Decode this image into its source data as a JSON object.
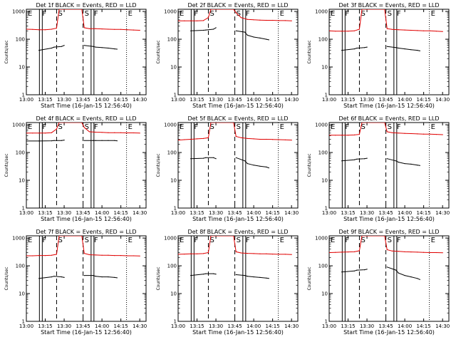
{
  "figure": {
    "type": "line-grid",
    "rows": 3,
    "cols": 3
  },
  "style": {
    "events_color": "#000000",
    "lld_color": "#e00000",
    "background": "#ffffff"
  },
  "common": {
    "xlabel": "Start Time (16-Jan-15 12:56:40)",
    "ylabel": "Counts/sec",
    "x_ticks": [
      "13:00",
      "13:15",
      "13:30",
      "13:45",
      "14:00",
      "14:15",
      "14:30"
    ],
    "x_tick_minutes": [
      0,
      15,
      30,
      45,
      60,
      75,
      90
    ],
    "xlim_minutes": [
      0,
      95
    ],
    "y_ticks": [
      "1",
      "10",
      "100",
      "1000"
    ],
    "y_tick_values": [
      1,
      10,
      100,
      1000
    ],
    "ylim": [
      1,
      1200
    ],
    "y_scale": "log",
    "grid": false,
    "markers": [
      {
        "label": "E",
        "minute": 0,
        "line": "dotted"
      },
      {
        "label": "F",
        "minute": 11.5,
        "line": "double-solid"
      },
      {
        "label": "S",
        "minute": 24,
        "line": "dashed"
      },
      {
        "label": "S",
        "minute": 45,
        "line": "dashed"
      },
      {
        "label": "F",
        "minute": 52.5,
        "line": "double-solid"
      },
      {
        "label": "E",
        "minute": 79.5,
        "line": "dotted"
      }
    ]
  },
  "chart_data": [
    {
      "type": "line",
      "title": "Det 1f BLACK = Events, RED = LLD",
      "series": [
        {
          "name": "Events",
          "x": [
            10,
            20,
            22,
            28,
            30,
            44,
            46,
            53,
            55,
            60,
            65,
            70,
            72
          ],
          "y": [
            40,
            48,
            52,
            55,
            60,
            null,
            60,
            55,
            52,
            50,
            48,
            45,
            44
          ]
        },
        {
          "name": "LLD",
          "x": [
            0,
            5,
            10,
            15,
            20,
            24,
            26,
            44,
            46,
            50,
            55,
            60,
            65,
            70,
            75,
            80,
            85,
            90
          ],
          "y": [
            230,
            225,
            220,
            220,
            230,
            250,
            1200,
            1200,
            260,
            240,
            240,
            235,
            230,
            225,
            225,
            220,
            215,
            210
          ]
        }
      ]
    },
    {
      "type": "line",
      "title": "Det 2f BLACK = Events, RED = LLD",
      "series": [
        {
          "name": "Events",
          "x": [
            10,
            20,
            22,
            28,
            30,
            44,
            46,
            53,
            55,
            60,
            65,
            70,
            72
          ],
          "y": [
            200,
            210,
            215,
            230,
            260,
            null,
            200,
            180,
            140,
            120,
            110,
            100,
            95
          ]
        },
        {
          "name": "LLD",
          "x": [
            0,
            5,
            10,
            15,
            20,
            24,
            26,
            44,
            46,
            50,
            55,
            60,
            65,
            70,
            75,
            80,
            85,
            90
          ],
          "y": [
            460,
            460,
            460,
            460,
            470,
            600,
            1200,
            1200,
            900,
            600,
            520,
            500,
            490,
            480,
            480,
            470,
            470,
            460
          ]
        }
      ]
    },
    {
      "type": "line",
      "title": "Det 3f BLACK = Events, RED = LLD",
      "series": [
        {
          "name": "Events",
          "x": [
            10,
            20,
            22,
            28,
            30,
            44,
            46,
            53,
            55,
            60,
            65,
            70,
            72
          ],
          "y": [
            40,
            45,
            48,
            50,
            52,
            null,
            55,
            50,
            48,
            45,
            42,
            40,
            38
          ]
        },
        {
          "name": "LLD",
          "x": [
            0,
            5,
            10,
            15,
            20,
            24,
            26,
            44,
            46,
            50,
            55,
            60,
            65,
            70,
            75,
            80,
            85,
            90
          ],
          "y": [
            200,
            195,
            195,
            195,
            200,
            230,
            1200,
            1200,
            240,
            225,
            220,
            215,
            210,
            205,
            200,
            200,
            195,
            190
          ]
        }
      ]
    },
    {
      "type": "line",
      "title": "Det 4f BLACK = Events, RED = LLD",
      "series": [
        {
          "name": "Events",
          "x": [
            0,
            10,
            20,
            22,
            28,
            30,
            44,
            46,
            53,
            55,
            60,
            65,
            70,
            72
          ],
          "y": [
            260,
            260,
            265,
            270,
            270,
            280,
            null,
            270,
            270,
            270,
            270,
            270,
            270,
            265
          ]
        },
        {
          "name": "LLD",
          "x": [
            0,
            5,
            10,
            15,
            20,
            24,
            26,
            44,
            46,
            50,
            55,
            60,
            65,
            70,
            75,
            80,
            85,
            90
          ],
          "y": [
            500,
            500,
            500,
            500,
            520,
            700,
            1200,
            1200,
            800,
            560,
            540,
            530,
            520,
            520,
            520,
            510,
            510,
            500
          ]
        }
      ]
    },
    {
      "type": "line",
      "title": "Det 5f BLACK = Events, RED = LLD",
      "series": [
        {
          "name": "Events",
          "x": [
            10,
            20,
            22,
            28,
            30,
            44,
            46,
            53,
            55,
            60,
            65,
            70,
            72
          ],
          "y": [
            60,
            62,
            65,
            65,
            60,
            null,
            65,
            50,
            40,
            35,
            32,
            30,
            28
          ]
        },
        {
          "name": "LLD",
          "x": [
            0,
            5,
            10,
            15,
            20,
            24,
            26,
            44,
            46,
            50,
            55,
            60,
            65,
            70,
            75,
            80,
            85,
            90
          ],
          "y": [
            280,
            290,
            300,
            310,
            320,
            340,
            1200,
            1200,
            380,
            340,
            320,
            310,
            300,
            300,
            295,
            290,
            285,
            280
          ]
        }
      ]
    },
    {
      "type": "line",
      "title": "Det 6f BLACK = Events, RED = LLD",
      "series": [
        {
          "name": "Events",
          "x": [
            10,
            20,
            22,
            28,
            30,
            44,
            46,
            53,
            55,
            60,
            65,
            70,
            72
          ],
          "y": [
            50,
            55,
            58,
            60,
            62,
            null,
            60,
            50,
            45,
            40,
            38,
            35,
            34
          ]
        },
        {
          "name": "LLD",
          "x": [
            0,
            5,
            10,
            15,
            20,
            24,
            26,
            44,
            46,
            50,
            55,
            60,
            65,
            70,
            75,
            80,
            85,
            90
          ],
          "y": [
            420,
            420,
            420,
            420,
            430,
            450,
            1200,
            1200,
            560,
            520,
            500,
            490,
            480,
            470,
            460,
            460,
            450,
            440
          ]
        }
      ]
    },
    {
      "type": "line",
      "title": "Det 7f BLACK = Events, RED = LLD",
      "series": [
        {
          "name": "Events",
          "x": [
            10,
            20,
            22,
            28,
            30,
            44,
            46,
            53,
            55,
            60,
            65,
            70,
            72
          ],
          "y": [
            35,
            40,
            42,
            40,
            38,
            null,
            45,
            45,
            42,
            40,
            40,
            38,
            37
          ]
        },
        {
          "name": "LLD",
          "x": [
            0,
            5,
            10,
            15,
            20,
            24,
            26,
            44,
            46,
            50,
            55,
            60,
            65,
            70,
            75,
            80,
            85,
            90
          ],
          "y": [
            230,
            230,
            235,
            235,
            240,
            260,
            1200,
            1200,
            280,
            250,
            245,
            240,
            240,
            235,
            235,
            230,
            230,
            225
          ]
        }
      ]
    },
    {
      "type": "line",
      "title": "Det 8f BLACK = Events, RED = LLD",
      "series": [
        {
          "name": "Events",
          "x": [
            10,
            20,
            22,
            28,
            30,
            44,
            46,
            53,
            55,
            60,
            65,
            70,
            72
          ],
          "y": [
            45,
            50,
            52,
            52,
            50,
            null,
            48,
            45,
            42,
            40,
            38,
            36,
            35
          ]
        },
        {
          "name": "LLD",
          "x": [
            0,
            5,
            10,
            15,
            20,
            24,
            26,
            44,
            46,
            50,
            55,
            60,
            65,
            70,
            75,
            80,
            85,
            90
          ],
          "y": [
            260,
            265,
            270,
            270,
            275,
            300,
            1200,
            1200,
            320,
            290,
            280,
            275,
            270,
            270,
            265,
            260,
            260,
            255
          ]
        }
      ]
    },
    {
      "type": "line",
      "title": "Det 9f BLACK = Events, RED = LLD",
      "series": [
        {
          "name": "Events",
          "x": [
            10,
            20,
            22,
            28,
            30,
            44,
            46,
            53,
            55,
            60,
            65,
            70,
            72
          ],
          "y": [
            60,
            65,
            70,
            72,
            75,
            null,
            90,
            70,
            55,
            45,
            40,
            35,
            32
          ]
        },
        {
          "name": "LLD",
          "x": [
            0,
            5,
            10,
            15,
            20,
            24,
            26,
            44,
            46,
            50,
            55,
            60,
            65,
            70,
            75,
            80,
            85,
            90
          ],
          "y": [
            300,
            305,
            310,
            315,
            320,
            350,
            1200,
            1200,
            380,
            340,
            330,
            320,
            315,
            310,
            305,
            300,
            300,
            295
          ]
        }
      ]
    }
  ]
}
